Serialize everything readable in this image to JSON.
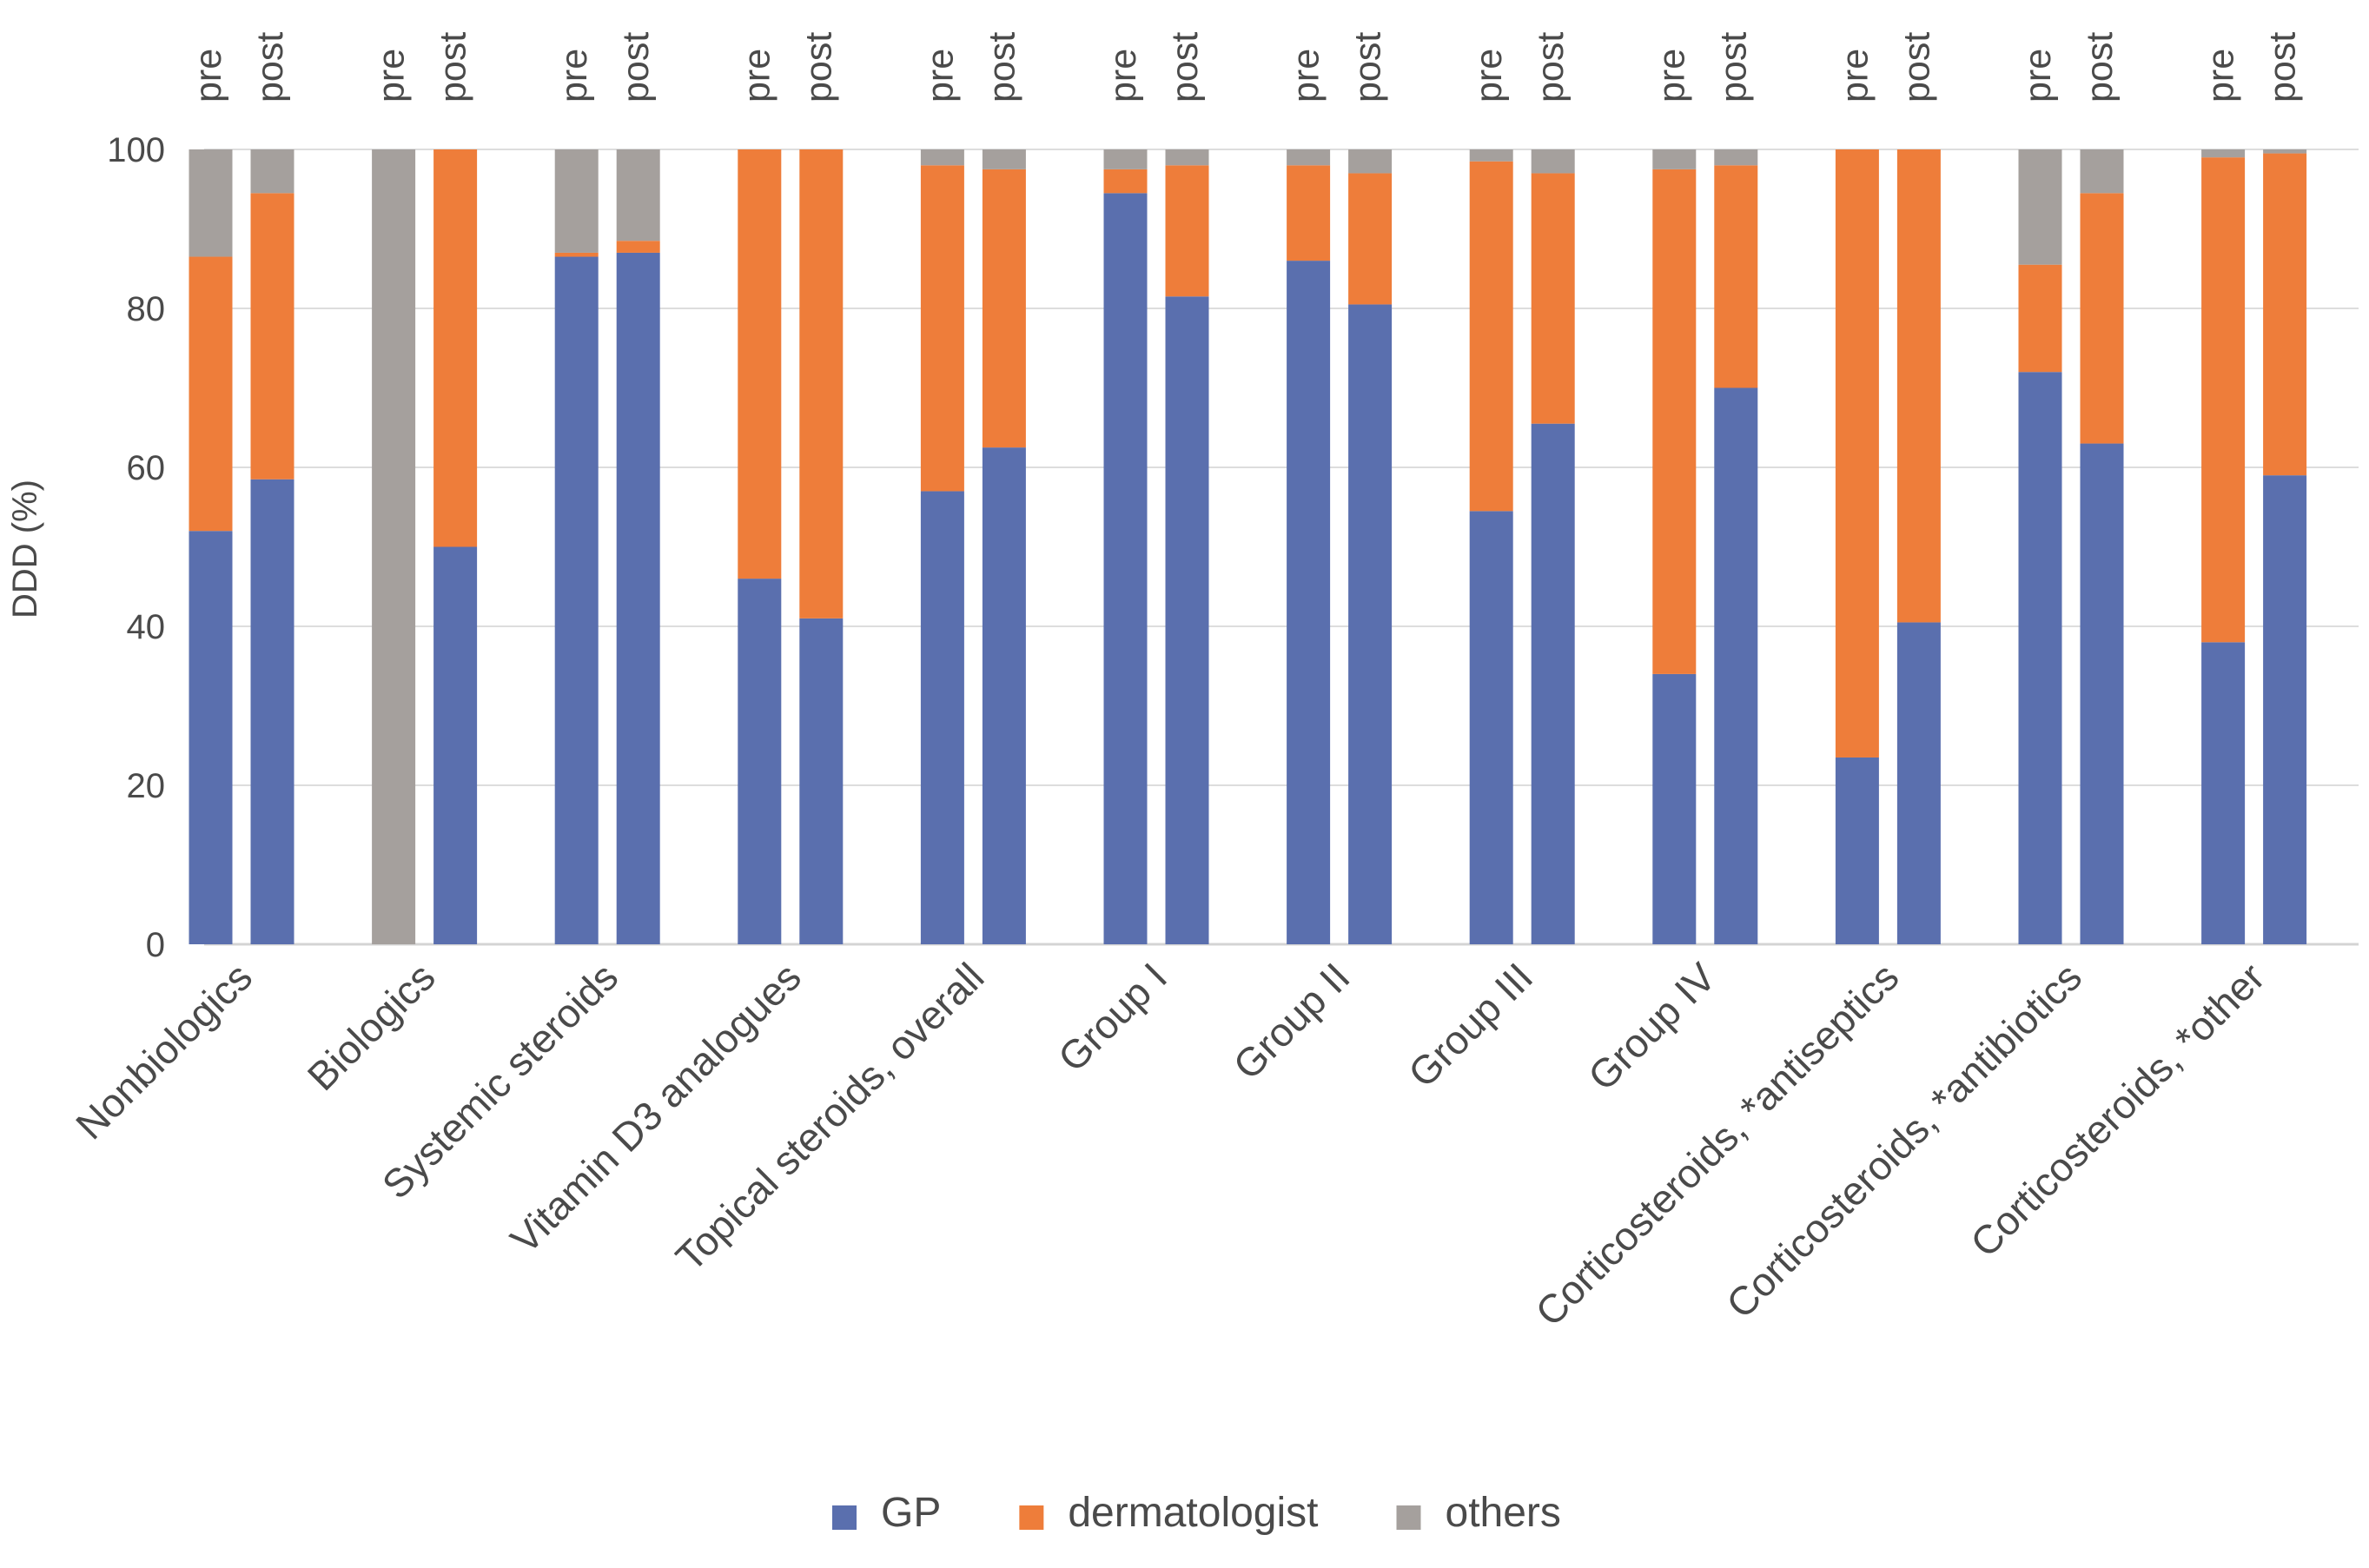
{
  "chart_data": {
    "type": "bar",
    "stacked": true,
    "ylabel": "DDD (%)",
    "ylim": [
      0,
      100
    ],
    "y_ticks": [
      0,
      20,
      40,
      60,
      80,
      100
    ],
    "grid": true,
    "legend_position": "bottom-center",
    "phase_labels": [
      "pre",
      "post"
    ],
    "categories": [
      "Nonbiologics",
      "Biologics",
      "Systemic steroids",
      "Vitamin D3 analogues",
      "Topical steroids, overall",
      "Group I",
      "Group II",
      "Group III",
      "Group IV",
      "Corticosteroids, *antiseptics",
      "Corticosteroids, *antibiotics",
      "Corticosteroids, *other"
    ],
    "series": [
      {
        "name": "GP",
        "color": "#5A6FAE",
        "values": [
          [
            52,
            58.5
          ],
          [
            0,
            50
          ],
          [
            86.5,
            87
          ],
          [
            46,
            41
          ],
          [
            57,
            62.5
          ],
          [
            94.5,
            81.5
          ],
          [
            86,
            80.5
          ],
          [
            54.5,
            65.5
          ],
          [
            34,
            70
          ],
          [
            23.5,
            40.5
          ],
          [
            72,
            63
          ],
          [
            38,
            59
          ]
        ]
      },
      {
        "name": "dermatologist",
        "color": "#EE7D3A",
        "values": [
          [
            34.5,
            36
          ],
          [
            0,
            50
          ],
          [
            0.5,
            1.5
          ],
          [
            54,
            59
          ],
          [
            41,
            35
          ],
          [
            3,
            16.5
          ],
          [
            12,
            16.5
          ],
          [
            44,
            31.5
          ],
          [
            63.5,
            28
          ],
          [
            76.5,
            59.5
          ],
          [
            13.5,
            31.5
          ],
          [
            61,
            40.5
          ]
        ]
      },
      {
        "name": "others",
        "color": "#A5A09D",
        "values": [
          [
            13.5,
            5.5
          ],
          [
            100,
            0
          ],
          [
            13,
            11.5
          ],
          [
            0,
            0
          ],
          [
            2,
            2.5
          ],
          [
            2.5,
            2
          ],
          [
            2,
            3
          ],
          [
            1.5,
            3
          ],
          [
            2.5,
            2
          ],
          [
            0,
            0
          ],
          [
            14.5,
            5.5
          ],
          [
            1,
            0.5
          ]
        ]
      }
    ]
  }
}
